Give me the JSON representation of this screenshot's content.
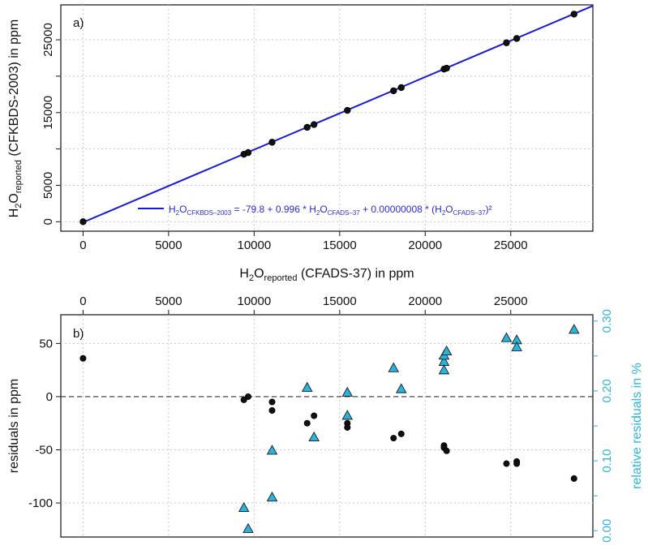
{
  "chart_data": [
    {
      "type": "scatter",
      "panel_label": "a)",
      "xlabel": {
        "main": "H",
        "sub1": "2",
        "mid": "O",
        "sub2": "reported",
        "tail": " (CFADS-37) in ppm"
      },
      "ylabel": {
        "main": "H",
        "sub1": "2",
        "mid": "O",
        "sub2": "reported",
        "tail": " (CFKBDS-2003) in ppm"
      },
      "xlim": [
        -1300,
        29800
      ],
      "ylim": [
        -1300,
        29800
      ],
      "x_ticks": [
        0,
        5000,
        10000,
        15000,
        20000,
        25000
      ],
      "x_tick_labels": [
        "0",
        "5000",
        "10000",
        "15000",
        "20000",
        "25000"
      ],
      "y_ticks": [
        0,
        5000,
        15000,
        25000
      ],
      "y_tick_labels": [
        "0",
        "5000",
        "15000",
        "25000"
      ],
      "y_minor_ticks": [
        10000,
        20000
      ],
      "grid": true,
      "points": [
        {
          "x": 0,
          "y": 0
        },
        {
          "x": 9400,
          "y": 9270
        },
        {
          "x": 9650,
          "y": 9500
        },
        {
          "x": 11050,
          "y": 10920
        },
        {
          "x": 13100,
          "y": 12970
        },
        {
          "x": 13500,
          "y": 13350
        },
        {
          "x": 15450,
          "y": 15300
        },
        {
          "x": 18150,
          "y": 17990
        },
        {
          "x": 18600,
          "y": 18440
        },
        {
          "x": 21100,
          "y": 20970
        },
        {
          "x": 21250,
          "y": 21100
        },
        {
          "x": 24750,
          "y": 24590
        },
        {
          "x": 25350,
          "y": 25180
        },
        {
          "x": 28700,
          "y": 28530
        }
      ],
      "fit": {
        "intercept": -79.8,
        "slope": 0.996,
        "quad": 8e-08,
        "color": "#1a1ad6"
      },
      "legend": {
        "placement": "bottom-right",
        "t1": "H",
        "t2": "2",
        "t3": "O",
        "t4": "CFKBDS–2003",
        "t5": " = -79.8 + 0.996 * H",
        "t6": "2",
        "t7": "O",
        "t8": "CFADS–37",
        "t9": " + 0.00000008 * (H",
        "t10": "2",
        "t11": "O",
        "t12": "CFADS–37",
        "t13": ")²"
      }
    },
    {
      "type": "scatter",
      "panel_label": "b)",
      "ylabel": "residuals in ppm",
      "y2label": "relative residuals in %",
      "xlim": [
        -1300,
        29800
      ],
      "ylim": [
        -132,
        77
      ],
      "y2lim": [
        -0.009,
        0.309
      ],
      "x_ticks": [
        0,
        5000,
        10000,
        15000,
        20000,
        25000
      ],
      "x_tick_labels": [
        "0",
        "5000",
        "10000",
        "15000",
        "20000",
        "25000"
      ],
      "y_ticks": [
        -100,
        -50,
        0,
        50
      ],
      "y_tick_labels": [
        "-100",
        "-50",
        "0",
        "50"
      ],
      "y2_ticks": [
        0.0,
        0.1,
        0.2,
        0.3
      ],
      "y2_tick_labels": [
        "0.00",
        "0.10",
        "0.20",
        "0.30"
      ],
      "y2_minor_ticks": [
        0.05,
        0.15,
        0.25
      ],
      "grid": true,
      "zero_line": 0,
      "series": [
        {
          "name": "residuals in ppm",
          "marker": "circle",
          "color": "#111111",
          "points": [
            {
              "x": 0,
              "y": 36
            },
            {
              "x": 9400,
              "y": -3
            },
            {
              "x": 9650,
              "y": 0
            },
            {
              "x": 11050,
              "y": -5
            },
            {
              "x": 11050,
              "y": -13
            },
            {
              "x": 13100,
              "y": -25
            },
            {
              "x": 13500,
              "y": -18
            },
            {
              "x": 15450,
              "y": -25
            },
            {
              "x": 15450,
              "y": -29
            },
            {
              "x": 18150,
              "y": -39
            },
            {
              "x": 18600,
              "y": -35
            },
            {
              "x": 21100,
              "y": -46
            },
            {
              "x": 21100,
              "y": -48
            },
            {
              "x": 21250,
              "y": -51
            },
            {
              "x": 24750,
              "y": -63
            },
            {
              "x": 25350,
              "y": -61
            },
            {
              "x": 25350,
              "y": -63
            },
            {
              "x": 28700,
              "y": -77
            }
          ]
        },
        {
          "name": "relative residuals in %",
          "marker": "triangle",
          "color": "#2bb3e0",
          "points": [
            {
              "x": 9400,
              "y": 0.033
            },
            {
              "x": 9650,
              "y": 0.003
            },
            {
              "x": 11050,
              "y": 0.115
            },
            {
              "x": 11050,
              "y": 0.048
            },
            {
              "x": 13100,
              "y": 0.205
            },
            {
              "x": 13500,
              "y": 0.134
            },
            {
              "x": 15450,
              "y": 0.198
            },
            {
              "x": 15450,
              "y": 0.165
            },
            {
              "x": 18150,
              "y": 0.233
            },
            {
              "x": 18600,
              "y": 0.203
            },
            {
              "x": 21100,
              "y": 0.242
            },
            {
              "x": 21100,
              "y": 0.251
            },
            {
              "x": 21100,
              "y": 0.23
            },
            {
              "x": 21250,
              "y": 0.257
            },
            {
              "x": 24750,
              "y": 0.276
            },
            {
              "x": 25350,
              "y": 0.273
            },
            {
              "x": 25350,
              "y": 0.263
            },
            {
              "x": 28700,
              "y": 0.288
            }
          ]
        }
      ]
    }
  ]
}
